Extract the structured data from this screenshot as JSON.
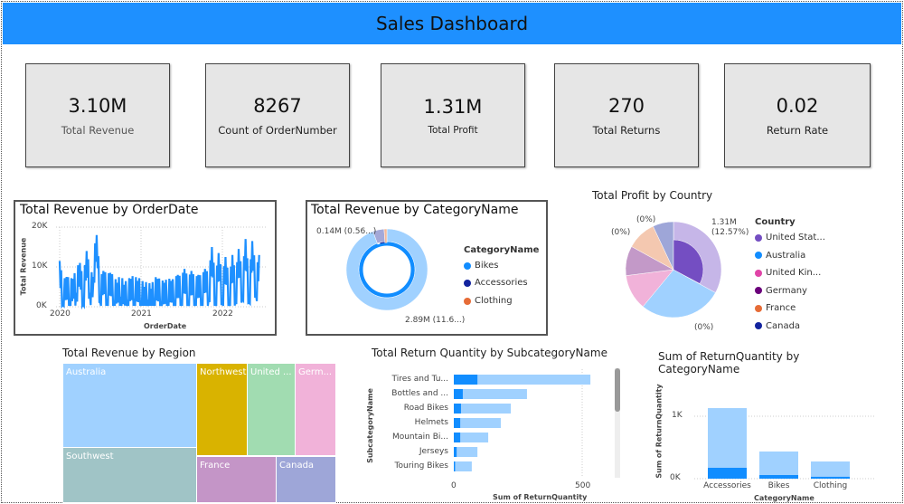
{
  "header": {
    "title": "Sales Dashboard",
    "color": "#1e90ff"
  },
  "kpis": [
    {
      "value": "3.10M",
      "label": "Total Revenue"
    },
    {
      "value": "8267",
      "label": "Count of OrderNumber"
    },
    {
      "value": "1.31M",
      "label": "Total Profit"
    },
    {
      "value": "270",
      "label": "Total Returns"
    },
    {
      "value": "0.02",
      "label": "Return Rate"
    }
  ],
  "chart_data": [
    {
      "type": "line",
      "title": "Total Revenue by OrderDate",
      "xlabel": "OrderDate",
      "ylabel": "Total Revenue",
      "yticks": [
        "0K",
        "10K",
        "20K"
      ],
      "xticks": [
        "2020",
        "2021",
        "2022"
      ],
      "ylim": [
        0,
        20000
      ],
      "grid": true,
      "color": "#1e90ff",
      "x": [
        "2020-01-01",
        "2020-01-15",
        "2020-02-01",
        "2020-02-15",
        "2020-03-01",
        "2020-03-15",
        "2020-04-01",
        "2020-04-15",
        "2020-05-01",
        "2020-05-15",
        "2020-06-01",
        "2020-06-15",
        "2020-07-01",
        "2020-07-15",
        "2020-08-01",
        "2020-08-15",
        "2020-09-01",
        "2020-09-15",
        "2020-10-01",
        "2020-10-15",
        "2020-11-01",
        "2020-11-15",
        "2020-12-01",
        "2020-12-15",
        "2021-01-01",
        "2021-01-15",
        "2021-02-01",
        "2021-02-15",
        "2021-03-01",
        "2021-03-15",
        "2021-04-01",
        "2021-04-15",
        "2021-05-01",
        "2021-05-15",
        "2021-06-01",
        "2021-06-15",
        "2021-07-01",
        "2021-07-15",
        "2021-08-01",
        "2021-08-15",
        "2021-09-01",
        "2021-09-15",
        "2021-10-01",
        "2021-10-15",
        "2021-11-01",
        "2021-11-15",
        "2021-12-01",
        "2021-12-15",
        "2022-01-01",
        "2022-01-15",
        "2022-02-01",
        "2022-02-15",
        "2022-03-01",
        "2022-03-15",
        "2022-04-01",
        "2022-04-15",
        "2022-05-01",
        "2022-05-15",
        "2022-06-01",
        "2022-06-15"
      ],
      "values": [
        11500,
        500,
        7500,
        1000,
        7000,
        3500,
        11000,
        600,
        14000,
        3500,
        7500,
        18000,
        1000,
        9000,
        2000,
        8500,
        1500,
        6000,
        2500,
        5500,
        1000,
        7000,
        2000,
        6500,
        1500,
        5000,
        1000,
        4500,
        1500,
        7000,
        800,
        6000,
        1200,
        6500,
        1000,
        8000,
        1200,
        9500,
        800,
        9000,
        1000,
        8000,
        1500,
        9500,
        2000,
        15000,
        800,
        13500,
        1500,
        12500,
        800,
        13000,
        1500,
        14500,
        2000,
        17000,
        1000,
        16500,
        3000,
        13000
      ]
    },
    {
      "type": "pie",
      "subtype": "donut",
      "title": "Total Revenue by CategoryName",
      "legend_title": "CategoryName",
      "legend": "right",
      "categories": [
        "Bikes",
        "Accessories",
        "Clothing"
      ],
      "colors": [
        "#118dff",
        "#12239e",
        "#e66c37"
      ],
      "labels": [
        "2.89M (11.6...)",
        "0.14M (0.56...)"
      ],
      "values": [
        2.89,
        0.14,
        0.07
      ]
    },
    {
      "type": "pie",
      "title": "Total Profit by Country",
      "legend_title": "Country",
      "legend": "right",
      "categories": [
        "United Stat...",
        "Australia",
        "United Kin...",
        "Germany",
        "France",
        "Canada"
      ],
      "colors": [
        "#744ec2",
        "#118dff",
        "#e044a7",
        "#6b007b",
        "#e66c37",
        "#12239e"
      ],
      "labels": [
        "1.31M (12.57%)",
        "(0%)",
        "(0%)",
        "(0%)"
      ],
      "values": [
        33,
        28,
        12,
        10,
        10,
        7
      ]
    },
    {
      "type": "treemap",
      "title": "Total Revenue by Region",
      "categories": [
        "Australia",
        "Southwest",
        "Northwest",
        "United ...",
        "Germ...",
        "France",
        "Canada"
      ],
      "colors": [
        "#a0d1ff",
        "#a0c4c6",
        "#d9b300",
        "#a1dcb1",
        "#f1b2d9",
        "#c495c7",
        "#9ea6d8"
      ]
    },
    {
      "type": "bar",
      "orientation": "horizontal",
      "title": "Total Return Quantity by SubcategoryName",
      "xlabel": "Sum of ReturnQuantity",
      "ylabel": "SubcategoryName",
      "categories": [
        "Tires and Tu...",
        "Bottles and ...",
        "Road Bikes",
        "Helmets",
        "Mountain Bi...",
        "Jerseys",
        "Touring Bikes"
      ],
      "xticks": [
        "0",
        "500"
      ],
      "xlim": [
        0,
        560
      ],
      "series": [
        {
          "values": [
            92,
            35,
            28,
            25,
            25,
            11,
            5
          ],
          "color": "#118dff"
        },
        {
          "values": [
            532,
            285,
            222,
            183,
            134,
            92,
            70
          ],
          "color": "#a0d1ff"
        }
      ]
    },
    {
      "type": "bar",
      "title": "Sum of ReturnQuantity by CategoryName",
      "xlabel": "CategoryName",
      "ylabel": "Sum of ReturnQuantity",
      "categories": [
        "Accessories",
        "Bikes",
        "Clothing"
      ],
      "yticks": [
        "0K",
        "1K"
      ],
      "ylim": [
        0,
        1200
      ],
      "series": [
        {
          "values": [
            174,
            58,
            30
          ],
          "color": "#118dff"
        },
        {
          "values": [
            1130,
            435,
            275
          ],
          "color": "#a0d1ff"
        }
      ]
    }
  ]
}
